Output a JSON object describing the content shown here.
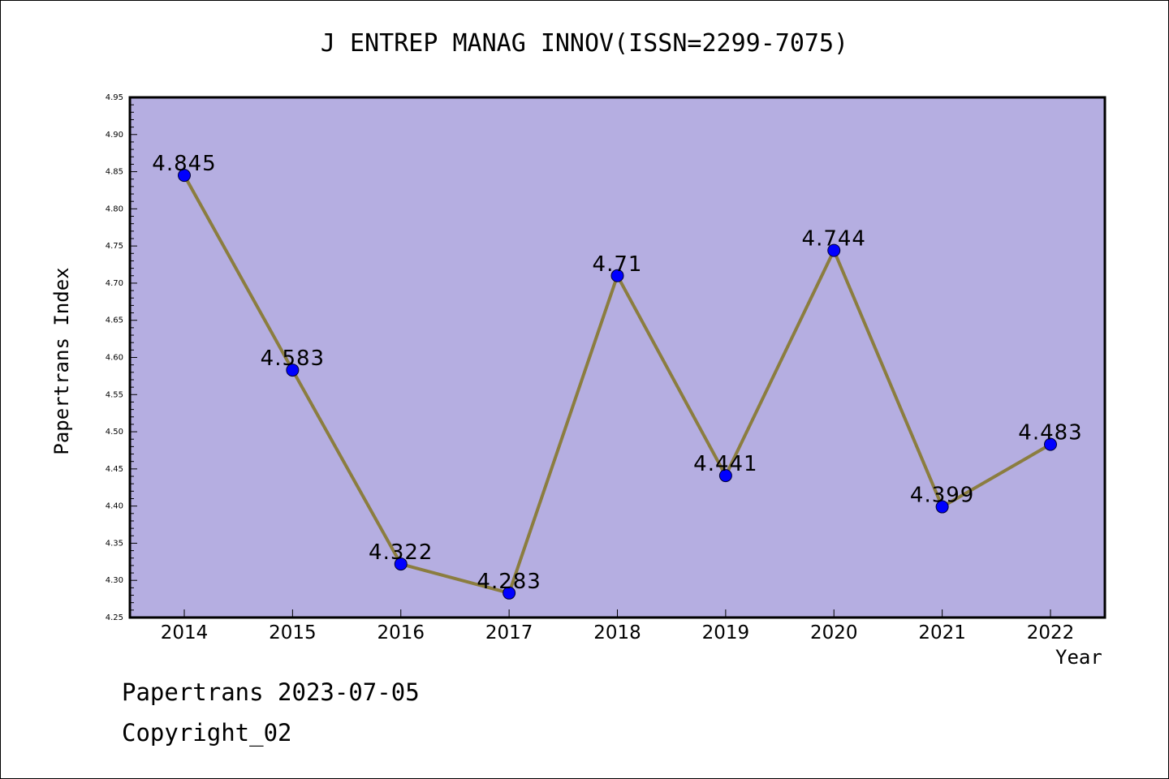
{
  "chart_data": {
    "type": "line",
    "title": "J ENTREP MANAG INNOV(ISSN=2299-7075)",
    "xlabel": "Year",
    "ylabel": "Papertrans Index",
    "categories": [
      "2014",
      "2015",
      "2016",
      "2017",
      "2018",
      "2019",
      "2020",
      "2021",
      "2022"
    ],
    "values": [
      4.845,
      4.583,
      4.322,
      4.283,
      4.71,
      4.441,
      4.744,
      4.399,
      4.483
    ],
    "data_labels": [
      "4.845",
      "4.583",
      "4.322",
      "4.283",
      "4.71",
      "4.441",
      "4.744",
      "4.399",
      "4.483"
    ],
    "ylim": [
      4.25,
      4.95
    ],
    "yticks": [
      "4.25",
      "4.30",
      "4.35",
      "4.40",
      "4.45",
      "4.50",
      "4.55",
      "4.60",
      "4.65",
      "4.70",
      "4.75",
      "4.80",
      "4.85",
      "4.90",
      "4.95"
    ],
    "grid": false,
    "colors": {
      "plot_background": "#b5aee1",
      "line": "#8b7d3f",
      "marker": "#0000ff"
    }
  },
  "footer": {
    "line1": "Papertrans 2023-07-05",
    "line2": "Copyright_02"
  }
}
